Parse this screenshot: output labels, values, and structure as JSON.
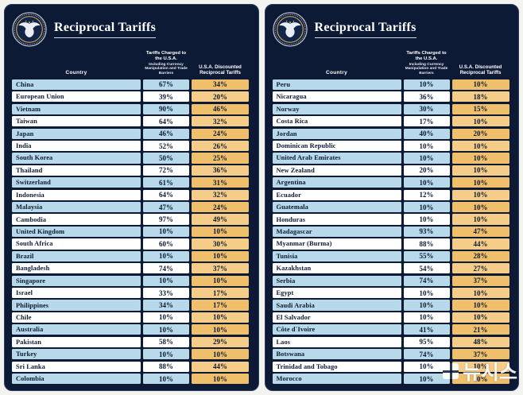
{
  "watermark": "뉴시스",
  "colors": {
    "board_bg": "#0d1a35",
    "row_blue": "#b7d9e9",
    "row_white": "#ffffff",
    "gold_light": "#f5cd88",
    "gold_dark": "#efbf6c",
    "text_dark": "#0c1a33",
    "title_white": "#ffffff"
  },
  "chart_data": [
    {
      "type": "table",
      "title": "Reciprocal Tariffs",
      "header": {
        "country": "Country",
        "charged_main": "Tariffs Charged to the U.S.A.",
        "charged_sub": "Including Currency Manipulation and Trade Barriers",
        "reciprocal": "U.S.A. Discounted Reciprocal Tariffs"
      },
      "columns": [
        "Country",
        "Tariffs Charged to the U.S.A. Including Currency Manipulation and Trade Barriers",
        "U.S.A. Discounted Reciprocal Tariffs"
      ],
      "rows": [
        [
          "China",
          "67%",
          "34%"
        ],
        [
          "European Union",
          "39%",
          "20%"
        ],
        [
          "Vietnam",
          "90%",
          "46%"
        ],
        [
          "Taiwan",
          "64%",
          "32%"
        ],
        [
          "Japan",
          "46%",
          "24%"
        ],
        [
          "India",
          "52%",
          "26%"
        ],
        [
          "South Korea",
          "50%",
          "25%"
        ],
        [
          "Thailand",
          "72%",
          "36%"
        ],
        [
          "Switzerland",
          "61%",
          "31%"
        ],
        [
          "Indonesia",
          "64%",
          "32%"
        ],
        [
          "Malaysia",
          "47%",
          "24%"
        ],
        [
          "Cambodia",
          "97%",
          "49%"
        ],
        [
          "United Kingdom",
          "10%",
          "10%"
        ],
        [
          "South Africa",
          "60%",
          "30%"
        ],
        [
          "Brazil",
          "10%",
          "10%"
        ],
        [
          "Bangladesh",
          "74%",
          "37%"
        ],
        [
          "Singapore",
          "10%",
          "10%"
        ],
        [
          "Israel",
          "33%",
          "17%"
        ],
        [
          "Philippines",
          "34%",
          "17%"
        ],
        [
          "Chile",
          "10%",
          "10%"
        ],
        [
          "Australia",
          "10%",
          "10%"
        ],
        [
          "Pakistan",
          "58%",
          "29%"
        ],
        [
          "Turkey",
          "10%",
          "10%"
        ],
        [
          "Sri Lanka",
          "88%",
          "44%"
        ],
        [
          "Colombia",
          "10%",
          "10%"
        ]
      ]
    },
    {
      "type": "table",
      "title": "Reciprocal Tariffs",
      "header": {
        "country": "Country",
        "charged_main": "Tariffs Charged to the U.S.A.",
        "charged_sub": "Including Currency Manipulation and Trade Barriers",
        "reciprocal": "U.S.A. Discounted Reciprocal Tariffs"
      },
      "columns": [
        "Country",
        "Tariffs Charged to the U.S.A. Including Currency Manipulation and Trade Barriers",
        "U.S.A. Discounted Reciprocal Tariffs"
      ],
      "rows": [
        [
          "Peru",
          "10%",
          "10%"
        ],
        [
          "Nicaragua",
          "36%",
          "18%"
        ],
        [
          "Norway",
          "30%",
          "15%"
        ],
        [
          "Costa Rica",
          "17%",
          "10%"
        ],
        [
          "Jordan",
          "40%",
          "20%"
        ],
        [
          "Dominican Republic",
          "10%",
          "10%"
        ],
        [
          "United Arab Emirates",
          "10%",
          "10%"
        ],
        [
          "New Zealand",
          "20%",
          "10%"
        ],
        [
          "Argentina",
          "10%",
          "10%"
        ],
        [
          "Ecuador",
          "12%",
          "10%"
        ],
        [
          "Guatemala",
          "10%",
          "10%"
        ],
        [
          "Honduras",
          "10%",
          "10%"
        ],
        [
          "Madagascar",
          "93%",
          "47%"
        ],
        [
          "Myanmar (Burma)",
          "88%",
          "44%"
        ],
        [
          "Tunisia",
          "55%",
          "28%"
        ],
        [
          "Kazakhstan",
          "54%",
          "27%"
        ],
        [
          "Serbia",
          "74%",
          "37%"
        ],
        [
          "Egypt",
          "10%",
          "10%"
        ],
        [
          "Saudi Arabia",
          "10%",
          "10%"
        ],
        [
          "El Salvador",
          "10%",
          "10%"
        ],
        [
          "Côte d`Ivoire",
          "41%",
          "21%"
        ],
        [
          "Laos",
          "95%",
          "48%"
        ],
        [
          "Botswana",
          "74%",
          "37%"
        ],
        [
          "Trinidad and Tobago",
          "10%",
          "10%"
        ],
        [
          "Morocco",
          "10%",
          "10%"
        ]
      ]
    }
  ]
}
